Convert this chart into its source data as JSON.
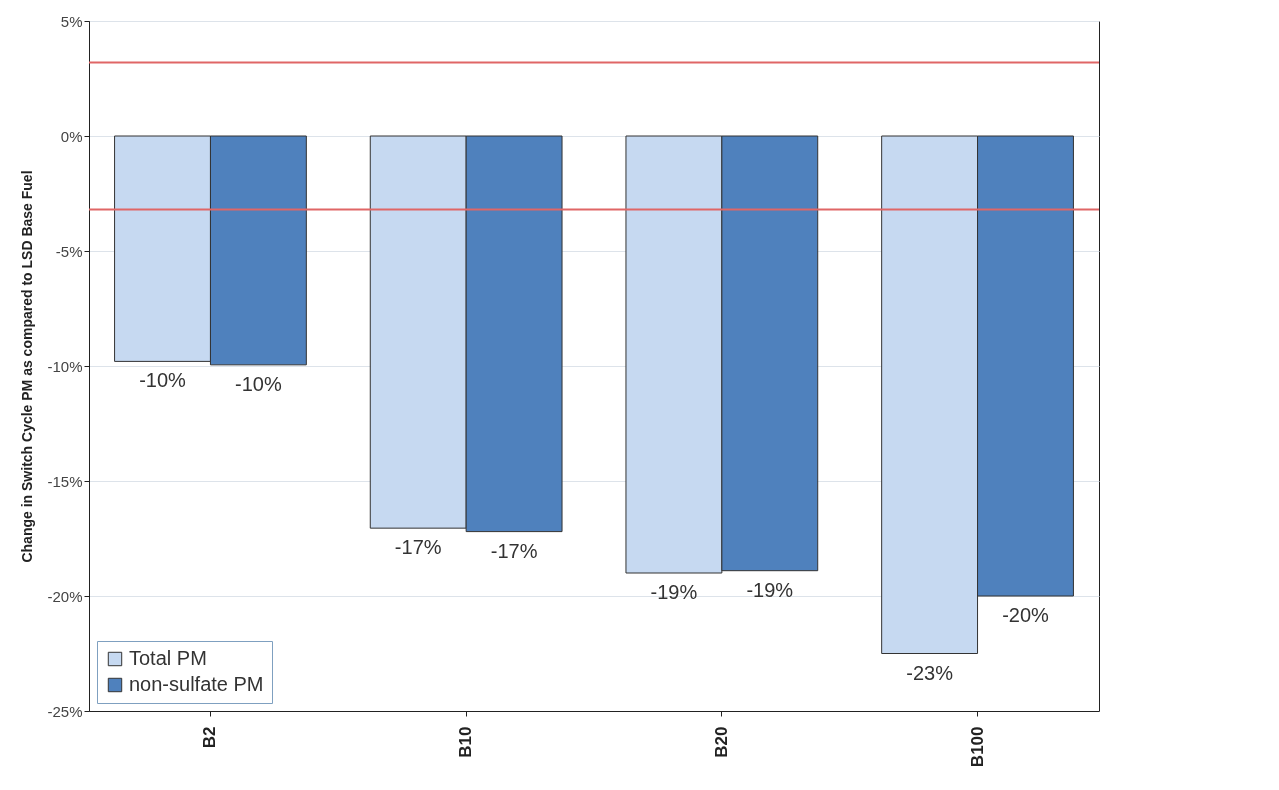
{
  "chart_data": {
    "type": "bar",
    "ylabel": "Change in Switch Cycle PM as compared to LSD Base Fuel",
    "categories": [
      "B2",
      "B10",
      "B20",
      "B100"
    ],
    "series": [
      {
        "name": "Total PM",
        "color": "#c6d9f1",
        "values": [
          -9.8,
          -17.05,
          -19.0,
          -22.5
        ],
        "value_labels": [
          "-10%",
          "-17%",
          "-19%",
          "-23%"
        ]
      },
      {
        "name": "non-sulfate PM",
        "color": "#4f81bd",
        "values": [
          -9.95,
          -17.2,
          -18.9,
          -20.0
        ],
        "value_labels": [
          "-10%",
          "-17%",
          "-19%",
          "-20%"
        ]
      }
    ],
    "ylim": [
      -25,
      5
    ],
    "yticks": [
      {
        "value": 5,
        "label": "5%"
      },
      {
        "value": 0,
        "label": "0%"
      },
      {
        "value": -5,
        "label": "-5%"
      },
      {
        "value": -10,
        "label": "-10%"
      },
      {
        "value": -15,
        "label": "-15%"
      },
      {
        "value": -20,
        "label": "-20%"
      },
      {
        "value": -25,
        "label": "-25%"
      }
    ],
    "ref_lines": [
      {
        "axis": "y",
        "value": 3.2,
        "color": "#e06666"
      },
      {
        "axis": "y",
        "value": -3.2,
        "color": "#e06666"
      }
    ],
    "grid": "y",
    "legend": "bottom left"
  }
}
